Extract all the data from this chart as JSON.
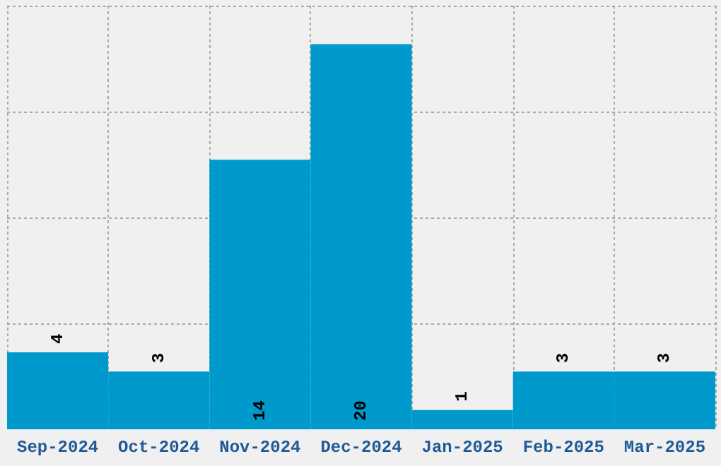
{
  "chart_data": {
    "type": "bar",
    "categories": [
      "Sep-2024",
      "Oct-2024",
      "Nov-2024",
      "Dec-2024",
      "Jan-2025",
      "Feb-2025",
      "Mar-2025"
    ],
    "values": [
      4,
      3,
      14,
      20,
      1,
      3,
      3
    ],
    "color": "#0099cc",
    "ylim": [
      0,
      22
    ],
    "yticks": [
      {
        "value": 5.5,
        "label": null
      },
      {
        "value": 11,
        "label": null
      },
      {
        "value": 16.5,
        "label": null
      },
      {
        "value": 22,
        "label": null
      }
    ],
    "grid": true,
    "data_labels": true,
    "tick_labels": "x"
  }
}
